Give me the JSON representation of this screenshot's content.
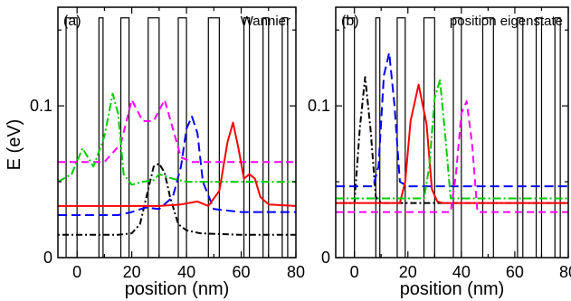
{
  "figure": {
    "ylabel": "E (eV)"
  },
  "chart_data": [
    {
      "panel_label": "(a)",
      "title": "Wannier",
      "type": "line",
      "xlabel": "position (nm)",
      "ylabel": "E (eV)",
      "xlim": [
        -7,
        80
      ],
      "ylim": [
        0,
        0.165
      ],
      "xticks": [
        0,
        20,
        40,
        60,
        80
      ],
      "xtick_labels": [
        "0",
        "20",
        "40",
        "60",
        "80"
      ],
      "yticks": [
        0,
        0.1
      ],
      "ytick_labels": [
        "0",
        "0.1"
      ],
      "grid": false,
      "potential_barriers": [
        [
          -4,
          0
        ],
        [
          8,
          9.5
        ],
        [
          16,
          19
        ],
        [
          26,
          30
        ],
        [
          37,
          40
        ],
        [
          48,
          52
        ],
        [
          61,
          63
        ],
        [
          68,
          70
        ],
        [
          75,
          77
        ]
      ],
      "barrier_top": 0.158,
      "series": [
        {
          "color": "#000000",
          "dash": "2,3,7,3",
          "x": [
            -7,
            15,
            20,
            23,
            26,
            28,
            30,
            32,
            34,
            37,
            40,
            45,
            60,
            80
          ],
          "y": [
            0.015,
            0.015,
            0.016,
            0.022,
            0.045,
            0.06,
            0.062,
            0.056,
            0.04,
            0.022,
            0.018,
            0.016,
            0.015,
            0.015
          ]
        },
        {
          "color": "#0000ff",
          "dash": "10,5",
          "x": [
            -7,
            15,
            20,
            25,
            30,
            35,
            38,
            40,
            42,
            44,
            46,
            50,
            60,
            80
          ],
          "y": [
            0.028,
            0.028,
            0.03,
            0.033,
            0.032,
            0.04,
            0.06,
            0.085,
            0.093,
            0.082,
            0.05,
            0.032,
            0.03,
            0.03
          ]
        },
        {
          "color": "#ff00ff",
          "dash": "8,5",
          "x": [
            -7,
            10,
            16,
            20,
            24,
            28,
            32,
            35,
            38,
            42,
            46,
            50,
            60,
            80
          ],
          "y": [
            0.063,
            0.063,
            0.075,
            0.104,
            0.09,
            0.09,
            0.104,
            0.085,
            0.066,
            0.063,
            0.063,
            0.063,
            0.063,
            0.063
          ]
        },
        {
          "color": "#00cc00",
          "dash": "9,3,2,3",
          "x": [
            -7,
            -2,
            2,
            6,
            10,
            13,
            15,
            17,
            20,
            24,
            28,
            30,
            35,
            40,
            50,
            80
          ],
          "y": [
            0.05,
            0.055,
            0.072,
            0.06,
            0.08,
            0.108,
            0.095,
            0.055,
            0.048,
            0.05,
            0.051,
            0.055,
            0.052,
            0.05,
            0.05,
            0.05
          ]
        },
        {
          "color": "#ff0000",
          "dash": "none",
          "x": [
            -7,
            30,
            38,
            44,
            48,
            52,
            55,
            57,
            59,
            61,
            63,
            65,
            67,
            70,
            80
          ],
          "y": [
            0.034,
            0.034,
            0.035,
            0.037,
            0.034,
            0.044,
            0.076,
            0.089,
            0.072,
            0.052,
            0.055,
            0.052,
            0.04,
            0.035,
            0.034
          ]
        }
      ]
    },
    {
      "panel_label": "(b)",
      "title": "position eigenstate",
      "type": "line",
      "xlabel": "position (nm)",
      "ylabel": "E (eV)",
      "xlim": [
        -7,
        80
      ],
      "ylim": [
        0,
        0.165
      ],
      "xticks": [
        0,
        20,
        40,
        60,
        80
      ],
      "xtick_labels": [
        "0",
        "20",
        "40",
        "60",
        "80"
      ],
      "yticks": [
        0,
        0.1
      ],
      "ytick_labels": [
        "0",
        "0.1"
      ],
      "grid": false,
      "potential_barriers": [
        [
          -4,
          0
        ],
        [
          8,
          9.5
        ],
        [
          16,
          19
        ],
        [
          26,
          30
        ],
        [
          37,
          40
        ],
        [
          48,
          52
        ],
        [
          61,
          63
        ],
        [
          68,
          70
        ],
        [
          75,
          77
        ]
      ],
      "barrier_top": 0.158,
      "series": [
        {
          "color": "#000000",
          "dash": "2,3,7,3",
          "x": [
            -7,
            0,
            2,
            4,
            6,
            8,
            10,
            80
          ],
          "y": [
            0.036,
            0.036,
            0.085,
            0.119,
            0.085,
            0.04,
            0.036,
            0.036
          ]
        },
        {
          "color": "#0000ff",
          "dash": "10,5",
          "x": [
            -7,
            7,
            9,
            11,
            13,
            15,
            17,
            20,
            80
          ],
          "y": [
            0.047,
            0.047,
            0.06,
            0.12,
            0.135,
            0.1,
            0.05,
            0.047,
            0.047
          ]
        },
        {
          "color": "#ff0000",
          "dash": "none",
          "x": [
            -7,
            17,
            19,
            21,
            24,
            27,
            29,
            31,
            33,
            80
          ],
          "y": [
            0.036,
            0.036,
            0.05,
            0.09,
            0.114,
            0.088,
            0.045,
            0.037,
            0.036,
            0.036
          ]
        },
        {
          "color": "#00cc00",
          "dash": "9,3,2,3",
          "x": [
            -7,
            26,
            28,
            30,
            32,
            34,
            36,
            80
          ],
          "y": [
            0.039,
            0.039,
            0.06,
            0.105,
            0.117,
            0.08,
            0.039,
            0.039
          ]
        },
        {
          "color": "#ff00ff",
          "dash": "8,5",
          "x": [
            -7,
            36,
            38,
            40,
            42,
            44,
            46,
            80
          ],
          "y": [
            0.03,
            0.03,
            0.055,
            0.095,
            0.103,
            0.075,
            0.03,
            0.03
          ]
        }
      ]
    }
  ]
}
